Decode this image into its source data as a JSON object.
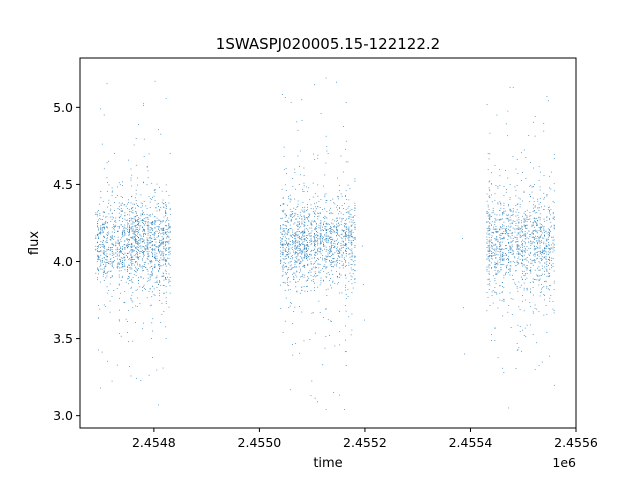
{
  "chart_data": {
    "type": "scatter",
    "title": "1SWASPJ020005.15-122122.2",
    "xlabel": "time",
    "ylabel": "flux",
    "x_offset_label": "1e6",
    "xlim": [
      2454660,
      2455600
    ],
    "ylim": [
      2.92,
      5.32
    ],
    "x_ticks": [
      2454800,
      2455000,
      2455200,
      2455400,
      2455600
    ],
    "x_tick_labels": [
      "2.4548",
      "2.4550",
      "2.4552",
      "2.4554",
      "2.4556"
    ],
    "y_ticks": [
      3.0,
      3.5,
      4.0,
      4.5,
      5.0
    ],
    "y_tick_labels": [
      "3.0",
      "3.5",
      "4.0",
      "4.5",
      "5.0"
    ],
    "grid": false,
    "point_color": "#1f77b4",
    "observing_seasons": [
      {
        "x_start": 2454690,
        "x_end": 2454832,
        "flux_center": 4.12,
        "flux_spread": 0.14,
        "flux_min": 3.07,
        "flux_max": 5.18
      },
      {
        "x_start": 2455040,
        "x_end": 2455182,
        "flux_center": 4.12,
        "flux_spread": 0.14,
        "flux_min": 3.04,
        "flux_max": 5.19
      },
      {
        "x_start": 2455430,
        "x_end": 2455560,
        "flux_center": 4.12,
        "flux_spread": 0.15,
        "flux_min": 3.05,
        "flux_max": 5.13
      }
    ],
    "isolated_points": [
      {
        "x": 2455195,
        "y": 4.1
      },
      {
        "x": 2455197,
        "y": 3.85
      },
      {
        "x": 2455199,
        "y": 3.62
      },
      {
        "x": 2455385,
        "y": 4.15
      },
      {
        "x": 2455387,
        "y": 3.7
      },
      {
        "x": 2455389,
        "y": 3.4
      }
    ]
  }
}
